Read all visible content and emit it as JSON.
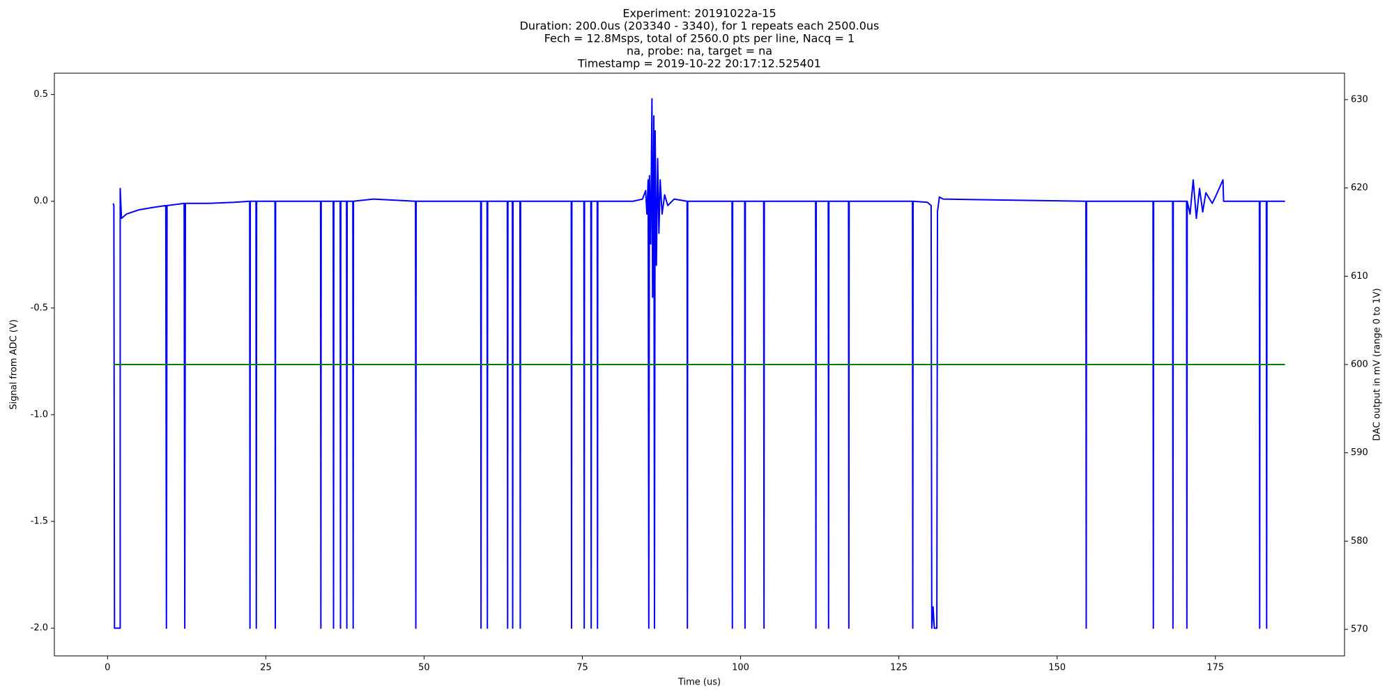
{
  "chart_data": {
    "type": "line",
    "title": [
      "Experiment: 20191022a-15",
      "Duration: 200.0us (203340 - 3340), for 1 repeats each 2500.0us",
      "Fech = 12.8Msps, total of 2560.0 pts per line, Nacq = 1",
      "na, probe: na, target = na",
      "Timestamp = 2019-10-22 20:17:12.525401"
    ],
    "xlabel": "Time (us)",
    "ylabel": "Signal from ADC (V)",
    "y2label": "DAC output in mV (range 0 to 1V)",
    "xlim": [
      -8.4,
      195.4
    ],
    "ylim": [
      -2.13,
      0.6
    ],
    "y2lim": [
      567,
      633
    ],
    "xticks": [
      0,
      25,
      50,
      75,
      100,
      125,
      150,
      175
    ],
    "yticks": [
      {
        "value": -2,
        "label": "-2.0"
      },
      -1.5,
      {
        "value": -1,
        "label": "-1.0"
      },
      -0.5,
      {
        "value": 0,
        "label": "0.0"
      },
      0.5
    ],
    "y2ticks": [
      570,
      580,
      590,
      600,
      610,
      620,
      630
    ],
    "series": [
      {
        "color": "#0000ff",
        "axis": "y",
        "x": [
          0.9,
          1.0,
          1.1,
          2.0,
          2.0,
          2.2,
          3,
          5,
          7,
          9.2,
          9.3,
          9.4,
          12.1,
          12.2,
          12.3,
          16,
          20,
          22.45,
          22.5,
          22.55,
          23.45,
          23.5,
          23.55,
          26.45,
          26.5,
          26.55,
          33.65,
          33.7,
          33.75,
          35.65,
          35.7,
          35.75,
          36.75,
          36.8,
          36.85,
          37.75,
          37.8,
          37.85,
          38.75,
          38.8,
          38.85,
          42,
          48.65,
          48.7,
          48.75,
          58.95,
          59.0,
          59.05,
          59.95,
          60.0,
          60.05,
          63.15,
          63.2,
          63.25,
          63.95,
          64.0,
          64.05,
          65.15,
          65.2,
          65.25,
          73.25,
          73.3,
          73.35,
          75.25,
          75.3,
          75.35,
          76.35,
          76.4,
          76.45,
          77.35,
          77.4,
          77.45,
          83,
          84.5,
          85.0,
          85.2,
          85.4,
          85.5,
          85.6,
          85.8,
          86.0,
          86.1,
          86.3,
          86.4,
          86.5,
          86.7,
          86.9,
          87.1,
          87.3,
          87.6,
          88,
          88.5,
          89.5,
          91.55,
          91.6,
          91.65,
          98.65,
          98.7,
          98.75,
          100.65,
          100.7,
          100.75,
          103.65,
          103.7,
          103.75,
          111.85,
          111.9,
          111.95,
          113.85,
          113.9,
          113.95,
          117.05,
          117.1,
          117.15,
          127.15,
          127.2,
          127.25,
          129.5,
          130.1,
          130.2,
          130.4,
          130.6,
          131.0,
          131.1,
          131.4,
          132,
          154.55,
          154.6,
          154.65,
          165.15,
          165.2,
          165.25,
          168.25,
          168.3,
          168.35,
          169.5,
          170.45,
          170.5,
          170.55,
          171,
          171.5,
          172,
          172.5,
          173,
          173.5,
          174.5,
          175,
          176.2,
          176.3,
          181.95,
          182.0,
          182.05,
          183.05,
          183.1,
          183.15,
          186
        ],
        "values": [
          -0.01,
          -0.02,
          -2,
          -2,
          0.06,
          -0.08,
          -0.06,
          -0.04,
          -0.03,
          -0.02,
          -2,
          -0.02,
          -0.01,
          -2,
          -0.01,
          -0.01,
          -0.005,
          0,
          -2,
          0,
          0,
          -2,
          0,
          0,
          -2,
          0,
          0,
          -2,
          0,
          0,
          -2,
          0,
          0,
          -2,
          0,
          0,
          -2,
          0,
          0,
          -2,
          0,
          0.01,
          0,
          -2,
          0,
          0,
          -2,
          0,
          0,
          -2,
          0,
          0,
          -2,
          0,
          0,
          -2,
          0,
          0,
          -2,
          0,
          0,
          -2,
          0,
          0,
          -2,
          0,
          0,
          -2,
          0,
          0,
          -2,
          0,
          0,
          0.01,
          0.05,
          -0.06,
          0.1,
          -2,
          0.12,
          -0.2,
          0.48,
          -0.45,
          0.4,
          -2,
          0.33,
          -0.3,
          0.2,
          -0.15,
          0.1,
          -0.06,
          0.03,
          -0.02,
          0.01,
          0,
          -2,
          0,
          0,
          -2,
          0,
          0,
          -2,
          0,
          0,
          -2,
          0,
          0,
          -2,
          0,
          0,
          -2,
          0,
          0,
          -2,
          0,
          0,
          -2,
          0,
          -0.005,
          -0.02,
          -2,
          -1.9,
          -2,
          -2,
          -0.05,
          0.02,
          0.01,
          0,
          -2,
          0,
          0,
          -2,
          0,
          0,
          -2,
          0,
          0,
          0,
          -2,
          0,
          -0.06,
          0.1,
          -0.08,
          0.06,
          -0.05,
          0.04,
          -0.01,
          0.02,
          0.1,
          0,
          0,
          -2,
          0,
          0,
          -2,
          0,
          0
        ]
      },
      {
        "color": "#008000",
        "axis": "y2",
        "x": [
          1,
          186
        ],
        "values": [
          600,
          600
        ]
      }
    ]
  }
}
